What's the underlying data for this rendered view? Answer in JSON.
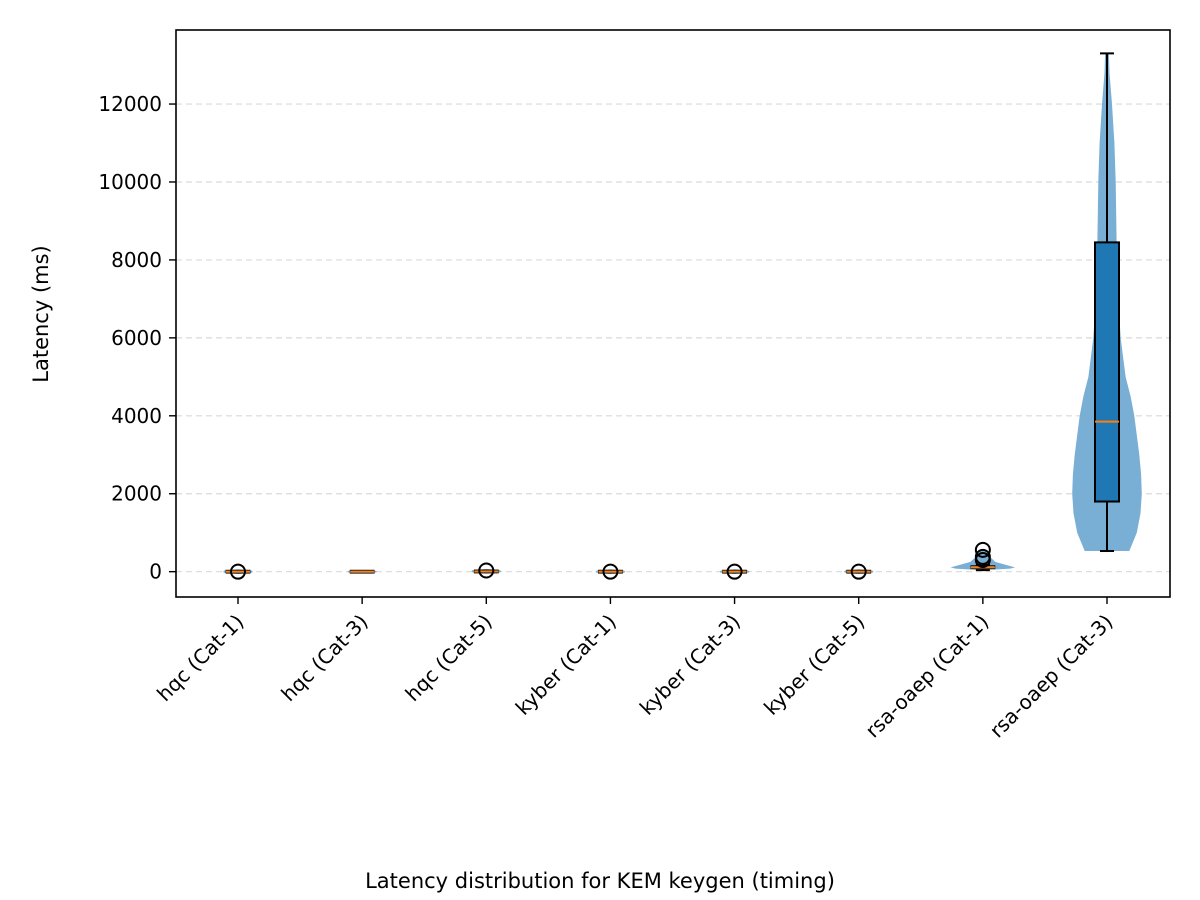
{
  "chart_data": {
    "type": "box",
    "overlay": "violin",
    "caption": "Latency distribution for KEM keygen (timing)",
    "xlabel": "",
    "ylabel": "Latency (ms)",
    "ylim": [
      -650,
      13900
    ],
    "yticks": [
      0,
      2000,
      4000,
      6000,
      8000,
      10000,
      12000
    ],
    "ytick_labels": [
      "0",
      "2000",
      "4000",
      "6000",
      "8000",
      "10000",
      "12000"
    ],
    "grid": "y dashed",
    "colors": {
      "violin": "#7aafd5",
      "box": "#1f77b4",
      "median": "#ff7f0e",
      "edge": "#000000"
    },
    "categories": [
      "hqc (Cat-1)",
      "hqc (Cat-3)",
      "hqc (Cat-5)",
      "kyber (Cat-1)",
      "kyber (Cat-3)",
      "kyber (Cat-5)",
      "rsa-oaep (Cat-1)",
      "rsa-oaep (Cat-3)"
    ],
    "boxes": [
      {
        "min": 0,
        "q1": 0,
        "median": 0,
        "q3": 0,
        "max": 0,
        "outliers": [
          0
        ]
      },
      {
        "min": 0,
        "q1": 0,
        "median": 0,
        "q3": 0,
        "max": 0,
        "outliers": []
      },
      {
        "min": 0,
        "q1": 0,
        "median": 5,
        "q3": 10,
        "max": 20,
        "outliers": [
          30
        ]
      },
      {
        "min": 0,
        "q1": 0,
        "median": 0,
        "q3": 0,
        "max": 0,
        "outliers": [
          0
        ]
      },
      {
        "min": 0,
        "q1": 0,
        "median": 0,
        "q3": 0,
        "max": 0,
        "outliers": [
          0
        ]
      },
      {
        "min": 0,
        "q1": 0,
        "median": 0,
        "q3": 0,
        "max": 0,
        "outliers": [
          0
        ]
      },
      {
        "min": 40,
        "q1": 80,
        "median": 110,
        "q3": 150,
        "max": 180,
        "outliers": [
          300,
          380,
          560
        ]
      },
      {
        "min": 530,
        "q1": 1800,
        "median": 3850,
        "q3": 8450,
        "max": 13300,
        "outliers": []
      }
    ],
    "violins": [
      {
        "profile": [
          [
            -60,
            0
          ],
          [
            -30,
            0.11
          ],
          [
            0,
            0.12
          ],
          [
            30,
            0.11
          ],
          [
            60,
            0
          ]
        ]
      },
      {
        "profile": [
          [
            -40,
            0
          ],
          [
            -20,
            0.11
          ],
          [
            0,
            0.12
          ],
          [
            20,
            0.11
          ],
          [
            40,
            0
          ]
        ]
      },
      {
        "profile": [
          [
            -50,
            0
          ],
          [
            -20,
            0.11
          ],
          [
            10,
            0.12
          ],
          [
            40,
            0.11
          ],
          [
            70,
            0
          ]
        ]
      },
      {
        "profile": [
          [
            -60,
            0
          ],
          [
            -30,
            0.11
          ],
          [
            0,
            0.12
          ],
          [
            30,
            0.11
          ],
          [
            60,
            0
          ]
        ]
      },
      {
        "profile": [
          [
            -60,
            0
          ],
          [
            -30,
            0.11
          ],
          [
            0,
            0.12
          ],
          [
            30,
            0.11
          ],
          [
            60,
            0
          ]
        ]
      },
      {
        "profile": [
          [
            -60,
            0
          ],
          [
            -30,
            0.11
          ],
          [
            0,
            0.12
          ],
          [
            30,
            0.11
          ],
          [
            60,
            0
          ]
        ]
      },
      {
        "profile": [
          [
            40,
            0.02
          ],
          [
            80,
            0.22
          ],
          [
            110,
            0.26
          ],
          [
            160,
            0.2
          ],
          [
            250,
            0.1
          ],
          [
            400,
            0.05
          ],
          [
            560,
            0.02
          ]
        ]
      },
      {
        "profile": [
          [
            530,
            0.18
          ],
          [
            1000,
            0.24
          ],
          [
            1500,
            0.27
          ],
          [
            2000,
            0.28
          ],
          [
            2500,
            0.275
          ],
          [
            3000,
            0.26
          ],
          [
            3500,
            0.24
          ],
          [
            4000,
            0.22
          ],
          [
            4500,
            0.19
          ],
          [
            5000,
            0.15
          ],
          [
            5500,
            0.13
          ],
          [
            6000,
            0.11
          ],
          [
            7000,
            0.09
          ],
          [
            8000,
            0.08
          ],
          [
            9000,
            0.075
          ],
          [
            10000,
            0.07
          ],
          [
            11000,
            0.06
          ],
          [
            12000,
            0.04
          ],
          [
            12800,
            0.02
          ],
          [
            13300,
            0.015
          ]
        ]
      }
    ]
  }
}
